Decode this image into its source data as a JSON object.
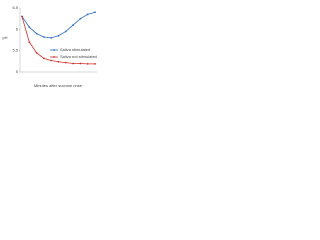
{
  "chart_data": {
    "type": "line",
    "y_label": "pH",
    "x_label": "Minutes after sucrose rinse",
    "categories": [
      null,
      null,
      null,
      null,
      null,
      null,
      null,
      null,
      null,
      null,
      null
    ],
    "series": [
      {
        "name": "Saliva stimulated",
        "color": "#2e6fc4",
        "values": [
          6.3,
          6.05,
          5.9,
          5.82,
          5.8,
          5.85,
          5.95,
          6.1,
          6.25,
          6.35,
          6.4
        ]
      },
      {
        "name": "Saliva not stimulated",
        "color": "#d0312d",
        "values": [
          6.3,
          5.7,
          5.45,
          5.32,
          5.27,
          5.24,
          5.22,
          5.2,
          5.2,
          5.19,
          5.19
        ]
      }
    ],
    "ylim": [
      5,
      6.5
    ],
    "yticks": [
      5,
      5.5,
      6,
      6.5
    ],
    "legend": "center-right"
  }
}
